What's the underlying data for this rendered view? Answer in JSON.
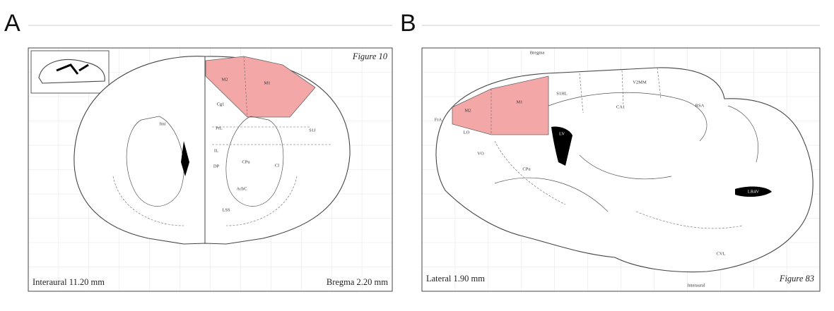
{
  "panels": [
    {
      "label": "A",
      "figure": "Figure 10",
      "left_caption": "Interaural 11.20 mm",
      "right_caption": "Bregma 2.20 mm",
      "regions": [
        "M2",
        "M1",
        "Cg1",
        "PrL",
        "IL",
        "DP",
        "CPu",
        "Cl",
        "AcbC",
        "LSS",
        "fmi",
        "S1J"
      ]
    },
    {
      "label": "B",
      "figure": "Figure 83",
      "left_caption": "Lateral 1.90 mm",
      "top_label": "Bregma",
      "bottom_label": "Interaural",
      "regions": [
        "M2",
        "M1",
        "FrA",
        "LO",
        "VO",
        "CPu",
        "LV",
        "LR4V",
        "S1HL",
        "CA1",
        "V2MM",
        "RSA",
        "CVL"
      ]
    }
  ]
}
